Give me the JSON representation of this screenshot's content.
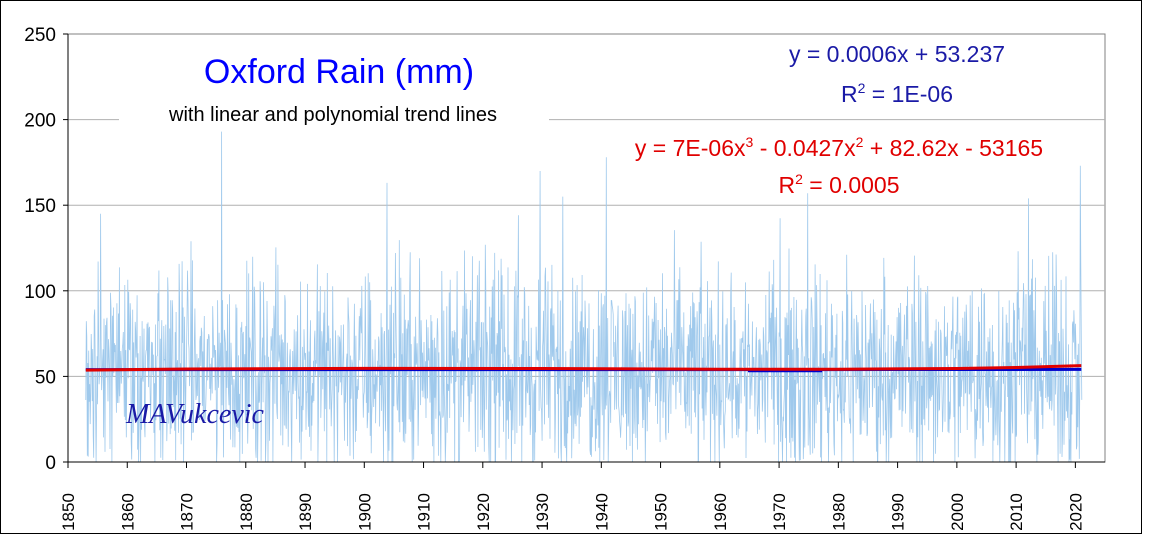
{
  "chart_data": {
    "type": "line",
    "title": "Oxford Rain (mm)",
    "subtitle": "with linear and polynomial trend lines",
    "signature": "MAVukcevic",
    "xlabel": "",
    "ylabel": "",
    "xlim": [
      1850,
      2025
    ],
    "ylim": [
      0,
      250
    ],
    "x_ticks": [
      1850,
      1860,
      1870,
      1880,
      1890,
      1900,
      1910,
      1920,
      1930,
      1940,
      1950,
      1960,
      1970,
      1980,
      1990,
      2000,
      2010,
      2020
    ],
    "y_ticks": [
      0,
      50,
      100,
      150,
      200,
      250
    ],
    "grid": "horizontal",
    "legend": "none",
    "series": [
      {
        "kind": "monthly rainfall",
        "color": "#9fc9ec",
        "x_start": 1853.0,
        "x_end": 2021.1,
        "mean": 53.3,
        "approx_range": [
          0,
          193
        ],
        "notable_peaks": [
          [
            1875.9,
            193
          ],
          [
            1929.7,
            170
          ],
          [
            1940.8,
            178
          ],
          [
            1903.8,
            163
          ],
          [
            2012.1,
            154
          ],
          [
            2020.8,
            173
          ],
          [
            1974.8,
            157
          ],
          [
            1855.5,
            145
          ],
          [
            1933.5,
            155
          ]
        ]
      },
      {
        "kind": "linear trend",
        "color": "#0000cc",
        "equation": {
          "intercept_label": "y = 0.0006x + 53.237",
          "r2_prefix": "R",
          "r2_sup": "2",
          "r2_value": " = 1E-06"
        },
        "points": [
          [
            1853,
            54.0
          ],
          [
            1965,
            54.0
          ],
          [
            1965,
            53.3
          ],
          [
            1977,
            53.3
          ],
          [
            1977,
            54.0
          ],
          [
            2021,
            54.1
          ]
        ]
      },
      {
        "kind": "polynomial trend",
        "color": "#e00000",
        "equation": {
          "parts": [
            "y = 7E-06x",
            "3",
            " - 0.0427x",
            "2",
            " + 82.62x - 53165"
          ],
          "r2_prefix": "R",
          "r2_sup": "2",
          "r2_value": " = 0.0005"
        },
        "points": [
          [
            1853,
            53.7
          ],
          [
            1870,
            54.3
          ],
          [
            1900,
            54.7
          ],
          [
            1930,
            54.6
          ],
          [
            1960,
            54.2
          ],
          [
            1980,
            54.2
          ],
          [
            2000,
            54.6
          ],
          [
            2010,
            55.2
          ],
          [
            2021,
            56.3
          ]
        ]
      }
    ]
  }
}
